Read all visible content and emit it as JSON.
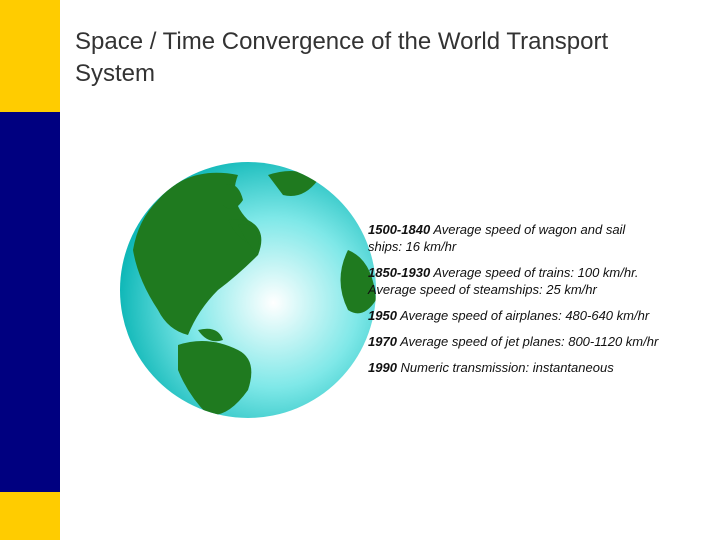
{
  "title": "Space / Time Convergence of the World Transport System",
  "items": [
    {
      "period": "1500-1840",
      "lines": [
        "Average speed of wagon and sail",
        "ships: 16 km/hr"
      ]
    },
    {
      "period": "1850-1930",
      "lines": [
        "Average speed of trains: 100 km/hr.",
        "Average speed of steamships: 25 km/hr"
      ]
    },
    {
      "period": "1950",
      "lines": [
        "Average speed of airplanes: 480-640 km/hr"
      ]
    },
    {
      "period": "1970",
      "lines": [
        "Average speed of jet planes: 800-1120 km/hr"
      ]
    },
    {
      "period": "1990",
      "lines": [
        "Numeric transmission: instantaneous"
      ]
    }
  ]
}
